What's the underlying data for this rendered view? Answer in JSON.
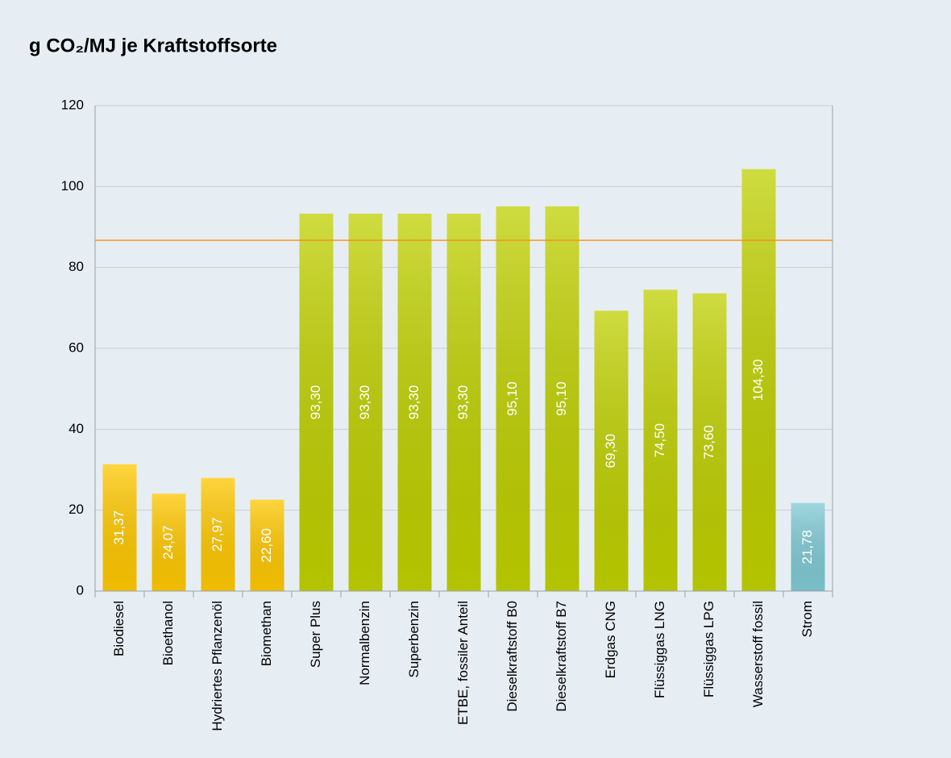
{
  "chart_data": {
    "type": "bar",
    "title": "g CO₂/MJ je Kraftstoffsorte",
    "categories": [
      "Biodiesel",
      "Bioethanol",
      "Hydriertes Pflanzenöl",
      "Biomethan",
      "Super Plus",
      "Normalbenzin",
      "Superbenzin",
      "ETBE, fossiler Anteil",
      "Dieselkraftstoff B0",
      "Dieselkraftstoff B7",
      "Erdgas CNG",
      "Flüssiggas LNG",
      "Flüssiggas LPG",
      "Wasserstoff fossil",
      "Strom"
    ],
    "values": [
      31.37,
      24.07,
      27.97,
      22.6,
      93.3,
      93.3,
      93.3,
      93.3,
      95.1,
      95.1,
      69.3,
      74.5,
      73.6,
      104.3,
      21.78
    ],
    "value_labels": [
      "31,37",
      "24,07",
      "27,97",
      "22,60",
      "93,30",
      "93,30",
      "93,30",
      "93,30",
      "95,10",
      "95,10",
      "69,30",
      "74,50",
      "73,60",
      "104,30",
      "21,78"
    ],
    "colors": [
      "#ffc800",
      "#ffc800",
      "#ffc800",
      "#ffc800",
      "#bfd000",
      "#bfd000",
      "#bfd000",
      "#bfd000",
      "#bfd000",
      "#bfd000",
      "#bfd000",
      "#bfd000",
      "#bfd000",
      "#bfd000",
      "#80cad4"
    ],
    "reference_line": 86.7,
    "reference_color": "#f0961e",
    "ylim": [
      0,
      120
    ],
    "yticks": [
      0,
      20,
      40,
      60,
      80,
      100,
      120
    ],
    "grid": true
  }
}
